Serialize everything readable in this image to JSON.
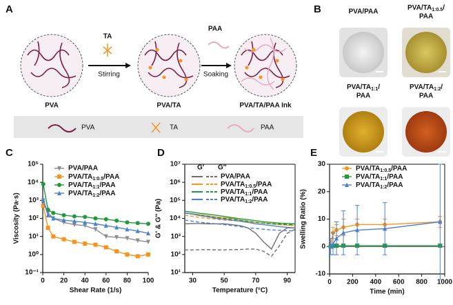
{
  "panel_a": {
    "letter": "A",
    "circles": [
      "PVA",
      "PVA/TA",
      "PVA/TA/PAA Ink"
    ],
    "arrows": [
      {
        "top": "TA",
        "bottom": "Stirring"
      },
      {
        "top": "PAA",
        "bottom": "Soaking"
      }
    ],
    "legend": [
      "PVA",
      "TA",
      "PAA"
    ]
  },
  "panel_b": {
    "letter": "B",
    "photos": [
      [
        "PVA/PAA"
      ],
      [
        "PVA/TA1:0.5/",
        "PAA"
      ],
      [
        "PVA/TA1:1/",
        "PAA"
      ],
      [
        "PVA/TA1:2/",
        "PAA"
      ]
    ]
  },
  "chart_data": [
    {
      "type": "line",
      "panel": "C",
      "x_label": "Shear Rate (1/s)",
      "y_label": "Viscosity (Pa·s)",
      "xlim": [
        0,
        100
      ],
      "xticks": [
        0,
        20,
        40,
        60,
        80,
        100
      ],
      "log_y": true,
      "ylim": [
        0.1,
        100000
      ],
      "yticks": [
        {
          "value": 0.1,
          "label": "10⁻¹"
        },
        {
          "value": 1,
          "label": "10⁰"
        },
        {
          "value": 10,
          "label": "10¹"
        },
        {
          "value": 100,
          "label": "10²"
        },
        {
          "value": 1000,
          "label": "10³"
        },
        {
          "value": 10000,
          "label": "10⁴"
        },
        {
          "value": 100000,
          "label": "10⁵"
        }
      ],
      "x": [
        0.5,
        5,
        10,
        20,
        30,
        40,
        50,
        60,
        70,
        80,
        90,
        100
      ],
      "series": [
        {
          "name": "PVA/PAA",
          "color": "#8c8c8c",
          "marker": "triangle-down",
          "values": [
            1000,
            200,
            100,
            60,
            45,
            40,
            25,
            10,
            9,
            8,
            6,
            5
          ]
        },
        {
          "name": "PVA/TA1:0.5/PAA",
          "color": "#f7941d",
          "marker": "square",
          "values": [
            500,
            30,
            10,
            7,
            5,
            4,
            3.5,
            2.5,
            1.5,
            1,
            0.8,
            1
          ]
        },
        {
          "name": "PVA/TA1:1/PAA",
          "color": "#1e9a3c",
          "marker": "circle",
          "values": [
            8000,
            300,
            200,
            150,
            130,
            120,
            100,
            90,
            75,
            60,
            55,
            50
          ]
        },
        {
          "name": "PVA/TA1:2/PAA",
          "color": "#4a80d4",
          "marker": "triangle-up",
          "values": [
            1000,
            150,
            100,
            80,
            70,
            60,
            50,
            40,
            32,
            25,
            20,
            15
          ]
        }
      ]
    },
    {
      "type": "line",
      "panel": "D",
      "x_label": "Temperature (°C)",
      "y_label": "G' & G'' (Pa)",
      "legend_headers": [
        "G'",
        "G''"
      ],
      "xlim": [
        25,
        95
      ],
      "xticks": [
        30,
        50,
        70,
        90
      ],
      "log_y": true,
      "ylim": [
        10,
        10000000
      ],
      "yticks": [
        {
          "value": 10,
          "label": "10¹"
        },
        {
          "value": 100,
          "label": "10²"
        },
        {
          "value": 1000,
          "label": "10³"
        },
        {
          "value": 10000,
          "label": "10⁴"
        },
        {
          "value": 100000,
          "label": "10⁵"
        },
        {
          "value": 1000000,
          "label": "10⁶"
        },
        {
          "value": 10000000,
          "label": "10⁷"
        }
      ],
      "x": [
        25,
        30,
        35,
        40,
        45,
        50,
        55,
        60,
        65,
        70,
        75,
        80,
        85,
        90,
        95
      ],
      "series": [
        {
          "name": "PVA/PAA",
          "color": "#6e6e6e",
          "values": [
            5000,
            5200,
            5200,
            5000,
            5000,
            5000,
            4500,
            4000,
            3000,
            1500,
            500,
            200,
            1500,
            3000,
            3000
          ],
          "loss_values": [
            180,
            180,
            185,
            185,
            180,
            180,
            185,
            190,
            200,
            200,
            150,
            80,
            300,
            1500,
            2500
          ]
        },
        {
          "name": "PVA/TA1:0.5/PAA",
          "color": "#f7941d",
          "values": [
            20000,
            18000,
            16000,
            14000,
            12000,
            11000,
            10000,
            8000,
            7000,
            6000,
            5500,
            5000,
            4500,
            4200,
            4000
          ],
          "loss_values": [
            15000,
            13000,
            11000,
            10000,
            9000,
            8000,
            7500,
            7000,
            6500,
            6000,
            5500,
            5000,
            5000,
            5000,
            5000
          ]
        },
        {
          "name": "PVA/TA1:1/PAA",
          "color": "#1e9a3c",
          "values": [
            25000,
            22000,
            19000,
            17000,
            15000,
            13000,
            11000,
            9500,
            8500,
            7500,
            6500,
            6000,
            5500,
            5200,
            5000
          ],
          "loss_values": [
            20000,
            17000,
            15000,
            13000,
            11000,
            10000,
            9000,
            8000,
            7000,
            6000,
            5500,
            5000,
            4800,
            4600,
            4500
          ]
        },
        {
          "name": "PVA/TA1:2/PAA",
          "color": "#4a80d4",
          "values": [
            20000,
            17000,
            14000,
            12000,
            10000,
            9000,
            8000,
            7000,
            6000,
            5000,
            4500,
            4000,
            3500,
            3200,
            3000
          ],
          "loss_values": [
            8000,
            7000,
            6000,
            5500,
            5000,
            4500,
            4000,
            3500,
            3000,
            2800,
            2500,
            2300,
            2200,
            2100,
            2000
          ]
        }
      ]
    },
    {
      "type": "errorbar",
      "panel": "E",
      "x_label": "Time (min)",
      "y_label": "Swelling Ratio (%)",
      "xlim": [
        0,
        1000
      ],
      "xticks": [
        0,
        200,
        400,
        600,
        800,
        1000
      ],
      "ylim": [
        -10,
        30
      ],
      "yticks": [
        -10,
        0,
        10,
        20,
        30
      ],
      "x": [
        10,
        30,
        60,
        120,
        240,
        480,
        960
      ],
      "series": [
        {
          "name": "PVA/TA1:0.5/PAA",
          "color": "#f7941d",
          "marker": "circle",
          "values": [
            0,
            5,
            6,
            7,
            8,
            8,
            9
          ],
          "errors": [
            0,
            2,
            2,
            3,
            2,
            2,
            2
          ]
        },
        {
          "name": "PVA/TA1:1/PAA",
          "color": "#1e9a3c",
          "marker": "square",
          "values": [
            0,
            0.2,
            0.3,
            0.3,
            0.3,
            0.3,
            0.3
          ],
          "errors": [
            0.5,
            0.5,
            0.5,
            0.5,
            0.5,
            0.5,
            0.5
          ]
        },
        {
          "name": "PVA/TA1:2/PAA",
          "color": "#4a80d4",
          "marker": "triangle-up",
          "values": [
            0,
            1,
            3,
            5,
            6,
            6.5,
            9
          ],
          "errors": [
            3,
            4,
            6,
            8,
            9,
            9.5,
            21
          ]
        }
      ]
    }
  ]
}
